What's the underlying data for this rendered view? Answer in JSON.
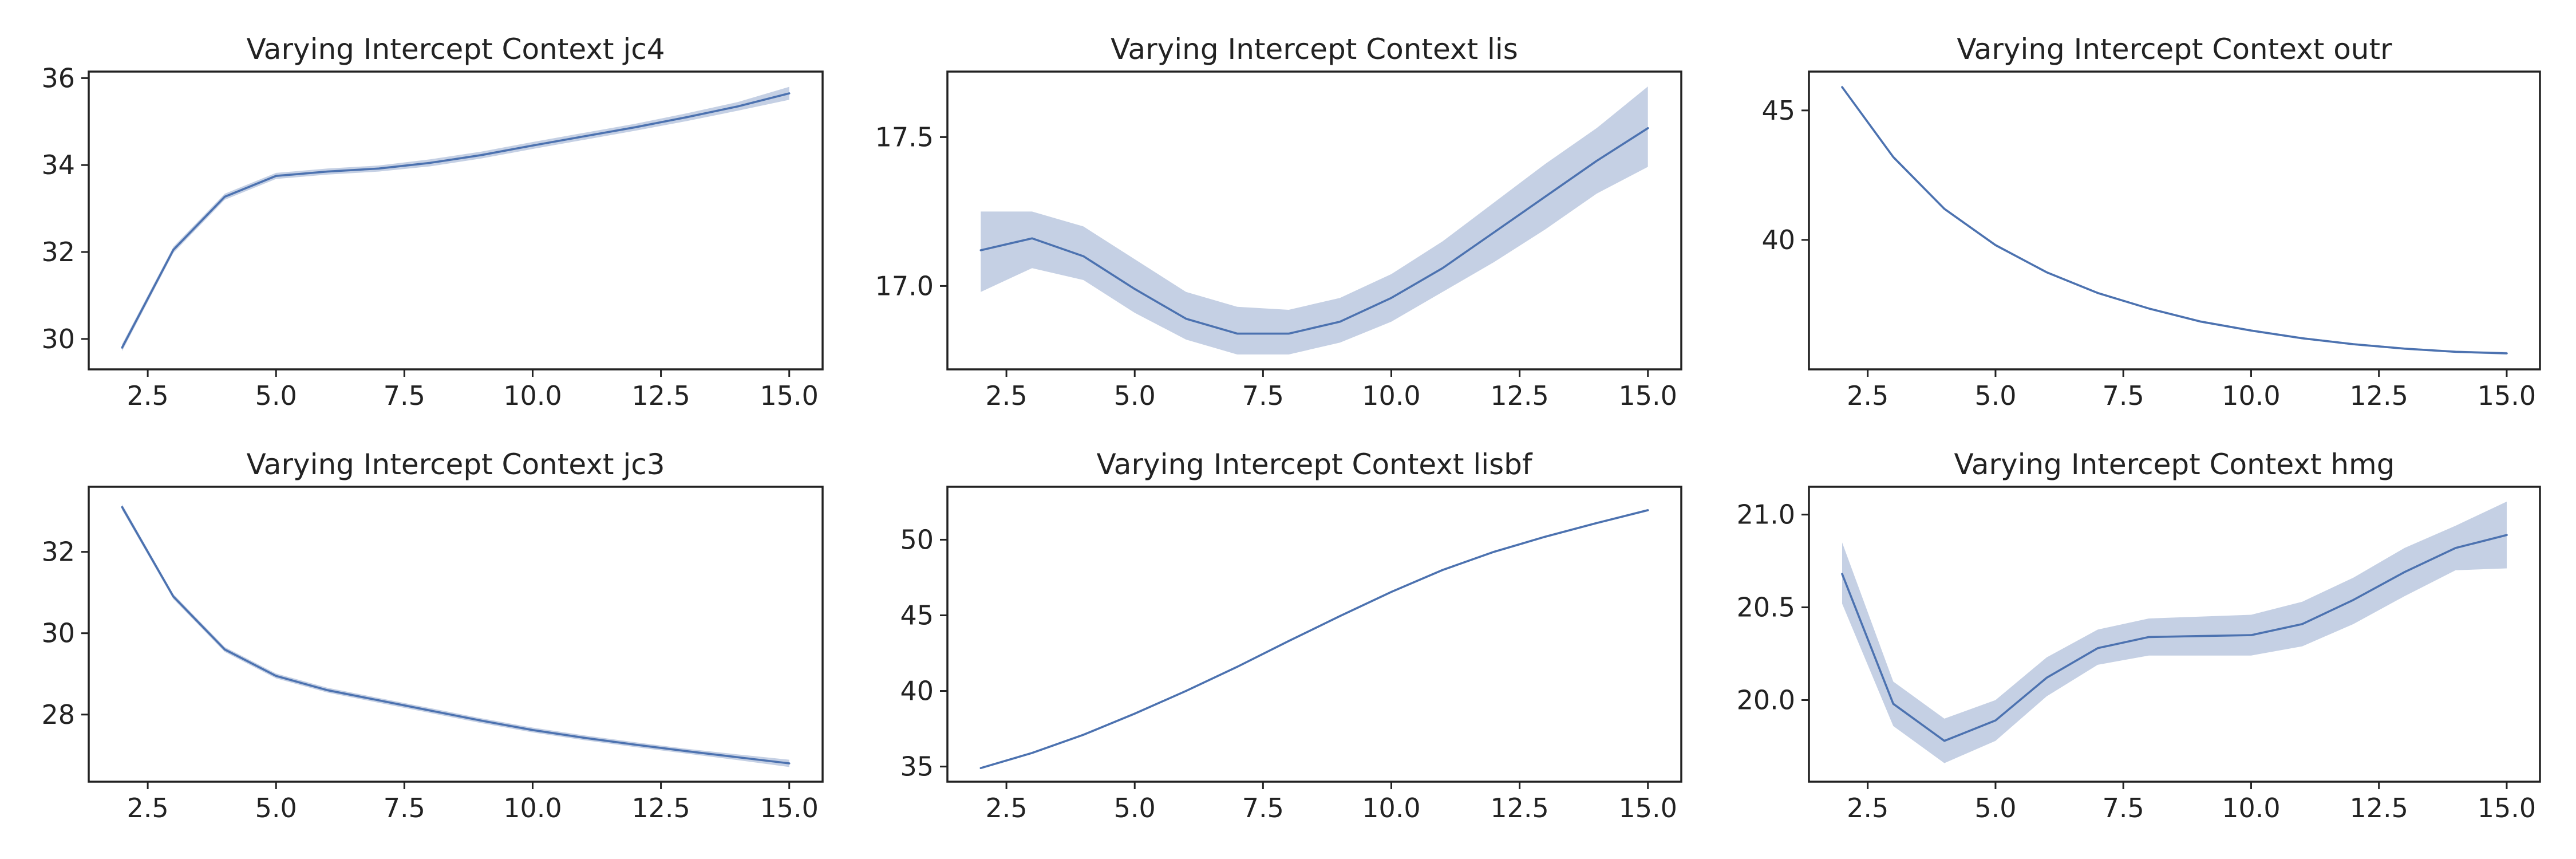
{
  "colors": {
    "line": "#4c72b0",
    "band": "#c5d0e4"
  },
  "chart_data": [
    {
      "type": "line",
      "title": "Varying Intercept Context jc4",
      "x": [
        2,
        3,
        4,
        5,
        6,
        7,
        8,
        9,
        10,
        11,
        12,
        13,
        14,
        15
      ],
      "y": [
        29.8,
        32.05,
        33.27,
        33.75,
        33.85,
        33.92,
        34.05,
        34.23,
        34.45,
        34.66,
        34.87,
        35.1,
        35.35,
        35.65
      ],
      "y_lower": [
        29.72,
        31.98,
        33.2,
        33.68,
        33.78,
        33.85,
        33.97,
        34.15,
        34.37,
        34.58,
        34.79,
        35.01,
        35.25,
        35.5
      ],
      "y_upper": [
        29.88,
        32.12,
        33.34,
        33.82,
        33.92,
        33.99,
        34.13,
        34.31,
        34.53,
        34.74,
        34.95,
        35.19,
        35.45,
        35.8
      ],
      "xlim": [
        1.35,
        15.65
      ],
      "ylim": [
        29.3,
        36.15
      ],
      "xticks": [
        2.5,
        5,
        7.5,
        10,
        12.5,
        15
      ],
      "xtick_labels": [
        "2.5",
        "5.0",
        "7.5",
        "10.0",
        "12.5",
        "15.0"
      ],
      "yticks": [
        30,
        32,
        34,
        36
      ],
      "ytick_labels": [
        "30",
        "32",
        "34",
        "36"
      ]
    },
    {
      "type": "line",
      "title": "Varying Intercept Context lis",
      "x": [
        2,
        3,
        4,
        5,
        6,
        7,
        8,
        9,
        10,
        11,
        12,
        13,
        14,
        15
      ],
      "y": [
        17.12,
        17.16,
        17.1,
        16.99,
        16.89,
        16.84,
        16.84,
        16.88,
        16.96,
        17.06,
        17.18,
        17.3,
        17.42,
        17.53
      ],
      "y_lower": [
        16.98,
        17.06,
        17.02,
        16.91,
        16.82,
        16.77,
        16.77,
        16.81,
        16.88,
        16.98,
        17.08,
        17.19,
        17.31,
        17.4
      ],
      "y_upper": [
        17.25,
        17.25,
        17.2,
        17.09,
        16.98,
        16.93,
        16.92,
        16.96,
        17.04,
        17.15,
        17.28,
        17.41,
        17.53,
        17.67
      ],
      "xlim": [
        1.35,
        15.65
      ],
      "ylim": [
        16.72,
        17.72
      ],
      "xticks": [
        2.5,
        5,
        7.5,
        10,
        12.5,
        15
      ],
      "xtick_labels": [
        "2.5",
        "5.0",
        "7.5",
        "10.0",
        "12.5",
        "15.0"
      ],
      "yticks": [
        17.0,
        17.5
      ],
      "ytick_labels": [
        "17.0",
        "17.5"
      ]
    },
    {
      "type": "line",
      "title": "Varying Intercept Context outr",
      "x": [
        2,
        3,
        4,
        5,
        6,
        7,
        8,
        9,
        10,
        11,
        12,
        13,
        14,
        15
      ],
      "y": [
        45.9,
        43.2,
        41.2,
        39.8,
        38.75,
        37.95,
        37.35,
        36.85,
        36.5,
        36.2,
        35.97,
        35.8,
        35.68,
        35.62
      ],
      "y_lower": [
        45.84,
        43.14,
        41.15,
        39.75,
        38.71,
        37.91,
        37.31,
        36.81,
        36.46,
        36.16,
        35.93,
        35.76,
        35.64,
        35.57
      ],
      "y_upper": [
        45.96,
        43.26,
        41.25,
        39.85,
        38.79,
        37.99,
        37.39,
        36.89,
        36.54,
        36.24,
        36.01,
        35.84,
        35.72,
        35.67
      ],
      "xlim": [
        1.35,
        15.65
      ],
      "ylim": [
        35.0,
        46.5
      ],
      "xticks": [
        2.5,
        5,
        7.5,
        10,
        12.5,
        15
      ],
      "xtick_labels": [
        "2.5",
        "5.0",
        "7.5",
        "10.0",
        "12.5",
        "15.0"
      ],
      "yticks": [
        40,
        45
      ],
      "ytick_labels": [
        "40",
        "45"
      ]
    },
    {
      "type": "line",
      "title": "Varying Intercept Context jc3",
      "x": [
        2,
        3,
        4,
        5,
        6,
        7,
        8,
        9,
        10,
        11,
        12,
        13,
        14,
        15
      ],
      "y": [
        33.1,
        30.9,
        29.6,
        28.95,
        28.6,
        28.35,
        28.1,
        27.85,
        27.62,
        27.43,
        27.26,
        27.1,
        26.95,
        26.8
      ],
      "y_lower": [
        33.03,
        30.84,
        29.54,
        28.89,
        28.54,
        28.29,
        28.04,
        27.79,
        27.56,
        27.37,
        27.2,
        27.04,
        26.88,
        26.71
      ],
      "y_upper": [
        33.17,
        30.96,
        29.66,
        29.01,
        28.66,
        28.41,
        28.16,
        27.91,
        27.68,
        27.49,
        27.32,
        27.16,
        27.02,
        26.89
      ],
      "xlim": [
        1.35,
        15.65
      ],
      "ylim": [
        26.35,
        33.6
      ],
      "xticks": [
        2.5,
        5,
        7.5,
        10,
        12.5,
        15
      ],
      "xtick_labels": [
        "2.5",
        "5.0",
        "7.5",
        "10.0",
        "12.5",
        "15.0"
      ],
      "yticks": [
        28,
        30,
        32
      ],
      "ytick_labels": [
        "28",
        "30",
        "32"
      ]
    },
    {
      "type": "line",
      "title": "Varying Intercept Context lisbf",
      "x": [
        2,
        3,
        4,
        5,
        6,
        7,
        8,
        9,
        10,
        11,
        12,
        13,
        14,
        15
      ],
      "y": [
        34.9,
        35.9,
        37.1,
        38.5,
        40.0,
        41.6,
        43.3,
        44.95,
        46.55,
        48.0,
        49.2,
        50.2,
        51.1,
        51.95
      ],
      "y_lower": [
        34.83,
        35.83,
        37.03,
        38.43,
        39.93,
        41.53,
        43.23,
        44.88,
        46.48,
        47.93,
        49.13,
        50.13,
        51.03,
        51.87
      ],
      "y_upper": [
        34.97,
        35.97,
        37.17,
        38.57,
        40.07,
        41.67,
        43.37,
        45.02,
        46.62,
        48.07,
        49.27,
        50.27,
        51.17,
        52.03
      ],
      "xlim": [
        1.35,
        15.65
      ],
      "ylim": [
        34.0,
        53.5
      ],
      "xticks": [
        2.5,
        5,
        7.5,
        10,
        12.5,
        15
      ],
      "xtick_labels": [
        "2.5",
        "5.0",
        "7.5",
        "10.0",
        "12.5",
        "15.0"
      ],
      "yticks": [
        35,
        40,
        45,
        50
      ],
      "ytick_labels": [
        "35",
        "40",
        "45",
        "50"
      ]
    },
    {
      "type": "line",
      "title": "Varying Intercept Context hmg",
      "x": [
        2,
        3,
        4,
        5,
        6,
        7,
        8,
        9,
        10,
        11,
        12,
        13,
        14,
        15
      ],
      "y": [
        20.68,
        19.98,
        19.78,
        19.89,
        20.12,
        20.28,
        20.34,
        20.345,
        20.35,
        20.41,
        20.54,
        20.69,
        20.82,
        20.89
      ],
      "y_lower": [
        20.52,
        19.86,
        19.66,
        19.78,
        20.02,
        20.19,
        20.24,
        20.24,
        20.24,
        20.29,
        20.41,
        20.56,
        20.7,
        20.71
      ],
      "y_upper": [
        20.85,
        20.1,
        19.9,
        20.0,
        20.23,
        20.38,
        20.44,
        20.45,
        20.46,
        20.53,
        20.66,
        20.82,
        20.94,
        21.07
      ],
      "xlim": [
        1.35,
        15.65
      ],
      "ylim": [
        19.56,
        21.15
      ],
      "xticks": [
        2.5,
        5,
        7.5,
        10,
        12.5,
        15
      ],
      "xtick_labels": [
        "2.5",
        "5.0",
        "7.5",
        "10.0",
        "12.5",
        "15.0"
      ],
      "yticks": [
        20.0,
        20.5,
        21.0
      ],
      "ytick_labels": [
        "20.0",
        "20.5",
        "21.0"
      ]
    }
  ]
}
